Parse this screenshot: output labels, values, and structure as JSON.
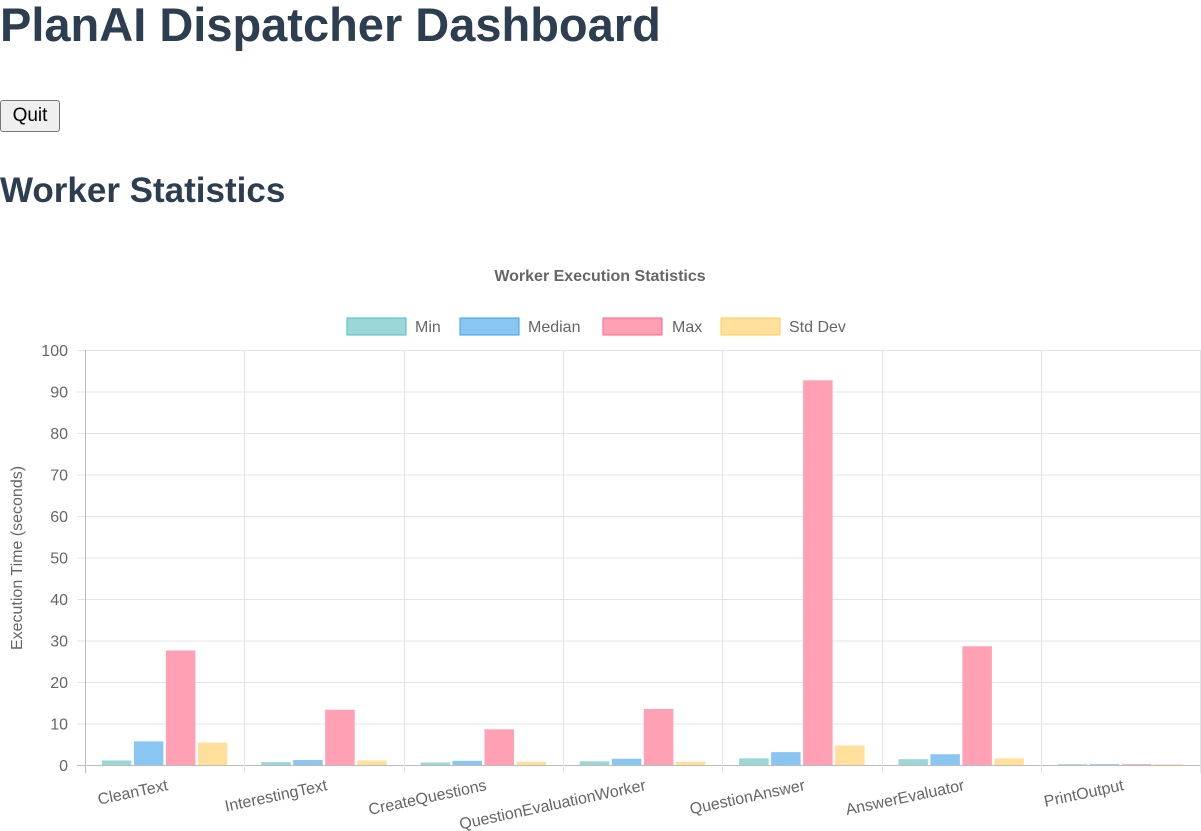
{
  "header": {
    "title": "PlanAI Dispatcher Dashboard"
  },
  "controls": {
    "quit_label": "Quit"
  },
  "section": {
    "title": "Worker Statistics"
  },
  "chart_data": {
    "type": "bar",
    "title": "Worker Execution Statistics",
    "xlabel": "",
    "ylabel": "Execution Time (seconds)",
    "ylim": [
      0,
      100
    ],
    "yticks": [
      0,
      10,
      20,
      30,
      40,
      50,
      60,
      70,
      80,
      90,
      100
    ],
    "grid": true,
    "legend_position": "top",
    "categories": [
      "CleanText",
      "InterestingText",
      "CreateQuestions",
      "QuestionEvaluationWorker",
      "QuestionAnswer",
      "AnswerEvaluator",
      "PrintOutput"
    ],
    "series": [
      {
        "name": "Min",
        "fill": "#9ad7d6",
        "stroke": "#4bc0c0",
        "values": [
          1.1,
          0.7,
          0.6,
          0.9,
          1.6,
          1.4,
          0.1
        ]
      },
      {
        "name": "Median",
        "fill": "#89c6f2",
        "stroke": "#36a2eb",
        "values": [
          5.7,
          1.2,
          1.0,
          1.5,
          3.1,
          2.6,
          0.1
        ]
      },
      {
        "name": "Max",
        "fill": "#ffa0b4",
        "stroke": "#ff6384",
        "values": [
          27.6,
          13.3,
          8.6,
          13.5,
          92.7,
          28.6,
          0.2
        ]
      },
      {
        "name": "Std Dev",
        "fill": "#ffdf9c",
        "stroke": "#ffce56",
        "values": [
          5.4,
          1.1,
          0.8,
          0.8,
          4.7,
          1.6,
          0.05
        ]
      }
    ]
  }
}
